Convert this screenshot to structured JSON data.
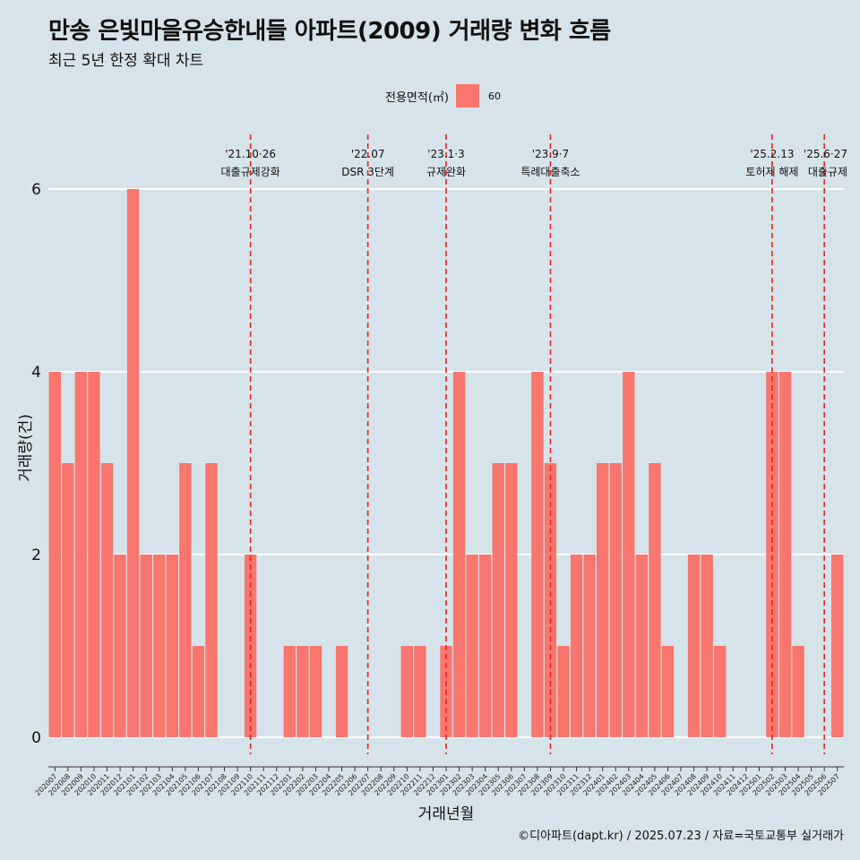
{
  "title": "만송 은빛마을유승한내들 아파트(2009) 거래량 변화 흐름",
  "subtitle": "최근 5년 한정 확대 차트",
  "caption": "©디아파트(dapt.kr) / 2025.07.23 / 자료=국토교통부 실거래가",
  "legend": {
    "title": "전용면적(㎡)",
    "items": [
      {
        "label": "60",
        "color": "#f8766d"
      }
    ]
  },
  "colors": {
    "background": "#d6e3ea",
    "bar": "#f8766d",
    "event_line": "#e8231f",
    "grid": "#ffffff"
  },
  "chart_data": {
    "type": "bar",
    "xlabel": "거래년월",
    "ylabel": "거래량(건)",
    "ylim": [
      0,
      6
    ],
    "yticks": [
      0,
      2,
      4,
      6
    ],
    "grid": true,
    "legend_position": "top",
    "categories": [
      "202007",
      "202008",
      "202009",
      "202010",
      "202011",
      "202012",
      "202101",
      "202102",
      "202103",
      "202104",
      "202105",
      "202106",
      "202107",
      "202108",
      "202109",
      "202110",
      "202111",
      "202112",
      "202201",
      "202202",
      "202203",
      "202204",
      "202205",
      "202206",
      "202207",
      "202208",
      "202209",
      "202210",
      "202211",
      "202212",
      "202301",
      "202302",
      "202303",
      "202304",
      "202305",
      "202306",
      "202307",
      "202308",
      "202309",
      "202310",
      "202311",
      "202312",
      "202401",
      "202402",
      "202403",
      "202404",
      "202405",
      "202406",
      "202407",
      "202408",
      "202409",
      "202410",
      "202411",
      "202412",
      "202501",
      "202502",
      "202503",
      "202504",
      "202505",
      "202506",
      "202507"
    ],
    "series": [
      {
        "name": "60",
        "values": [
          4,
          3,
          4,
          4,
          3,
          2,
          6,
          2,
          2,
          2,
          3,
          1,
          3,
          0,
          0,
          2,
          0,
          0,
          1,
          1,
          1,
          0,
          1,
          0,
          0,
          0,
          0,
          1,
          1,
          0,
          1,
          4,
          2,
          2,
          3,
          3,
          0,
          4,
          3,
          1,
          2,
          2,
          3,
          3,
          4,
          2,
          3,
          1,
          0,
          2,
          2,
          1,
          0,
          0,
          0,
          4,
          4,
          1,
          0,
          0,
          2
        ]
      }
    ],
    "events": [
      {
        "category": "202110",
        "date": "'21.10·26",
        "label": "대출규제강화"
      },
      {
        "category": "202207",
        "date": "'22.07",
        "label": "DSR 3단계"
      },
      {
        "category": "202301",
        "date": "'23.1·3",
        "label": "규제완화"
      },
      {
        "category": "202309",
        "date": "'23.9·7",
        "label": "특례대출축소"
      },
      {
        "category": "202502",
        "date": "'25.2.13",
        "label": "토허제 해제"
      },
      {
        "category": "202506",
        "date": "'25.6·27",
        "label": "대출규제"
      }
    ]
  }
}
